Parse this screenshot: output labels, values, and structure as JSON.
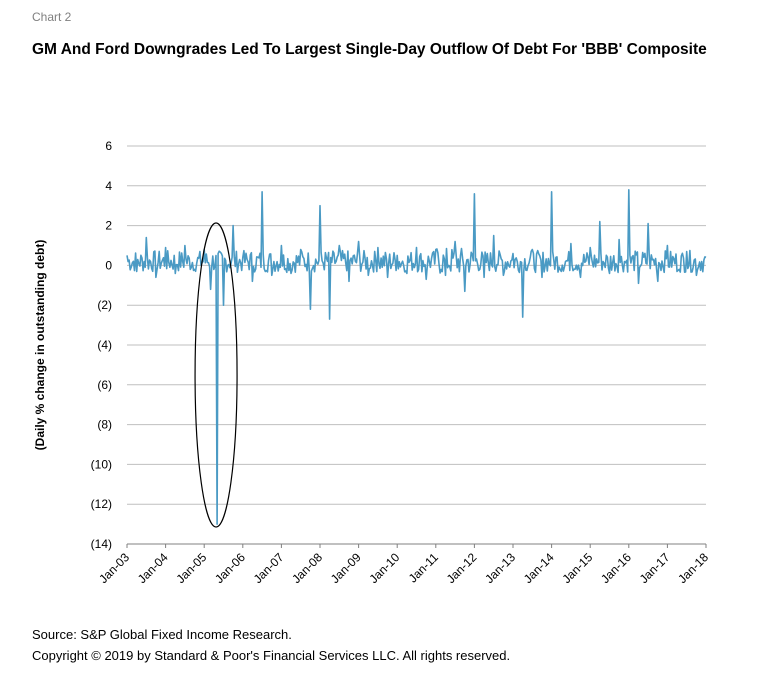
{
  "header": {
    "chart_label": "Chart 2",
    "title": "GM And Ford Downgrades Led To Largest Single-Day Outflow Of Debt For 'BBB' Composite"
  },
  "footer": {
    "source": "Source: S&P Global Fixed Income Research.",
    "copyright": "Copyright © 2019 by Standard & Poor's Financial Services LLC. All rights reserved."
  },
  "colors": {
    "series": "#4a9ac4",
    "grid": "#bfbfbf",
    "axis": "#808080",
    "annotation": "#000000"
  },
  "chart_data": {
    "type": "line",
    "title": "GM And Ford Downgrades Led To Largest Single-Day Outflow Of Debt For 'BBB' Composite",
    "xlabel": "",
    "ylabel": "(Daily % change in outstanding debt)",
    "ylim": [
      -14,
      6
    ],
    "y_ticks": [
      6,
      4,
      2,
      0,
      -2,
      -4,
      -6,
      -8,
      -10,
      -12,
      -14
    ],
    "y_tick_labels": [
      "6",
      "4",
      "2",
      "0",
      "(2)",
      "(4)",
      "(6)",
      "(8)",
      "(10)",
      "(12)",
      "(14)"
    ],
    "x_tick_labels": [
      "Jan-03",
      "Jan-04",
      "Jan-05",
      "Jan-06",
      "Jan-07",
      "Jan-08",
      "Jan-09",
      "Jan-10",
      "Jan-11",
      "Jan-12",
      "Jan-13",
      "Jan-14",
      "Jan-15",
      "Jan-16",
      "Jan-17",
      "Jan-18"
    ],
    "grid": "horizontal",
    "legend": "none",
    "annotation": "ellipse around May-2005 outflow",
    "series": [
      {
        "x": [
          "2003-01",
          "2003-04",
          "2003-07",
          "2003-10",
          "2004-01",
          "2004-04",
          "2004-07",
          "2004-10",
          "2005-01",
          "2005-03",
          "2005-05",
          "2005-07",
          "2005-10",
          "2006-01",
          "2006-04",
          "2006-07",
          "2006-10",
          "2007-01",
          "2007-04",
          "2007-07",
          "2007-10",
          "2008-01",
          "2008-04",
          "2008-07",
          "2008-10",
          "2009-01",
          "2009-04",
          "2009-07",
          "2009-10",
          "2010-01",
          "2010-04",
          "2010-07",
          "2010-10",
          "2011-01",
          "2011-04",
          "2011-07",
          "2011-10",
          "2012-01",
          "2012-04",
          "2012-07",
          "2012-10",
          "2013-01",
          "2013-04",
          "2013-07",
          "2013-10",
          "2014-01",
          "2014-04",
          "2014-07",
          "2014-10",
          "2015-01",
          "2015-04",
          "2015-07",
          "2015-10",
          "2016-01",
          "2016-04",
          "2016-07",
          "2016-10",
          "2017-01",
          "2017-04",
          "2017-07",
          "2017-10",
          "2018-01"
        ],
        "values": [
          0.5,
          -0.3,
          1.4,
          -0.6,
          0.9,
          -0.4,
          1.0,
          -0.2,
          0.8,
          -1.2,
          -13.0,
          -2.0,
          2.0,
          0.4,
          -0.8,
          3.7,
          -0.5,
          1.0,
          -0.4,
          0.8,
          -2.2,
          3.0,
          -2.7,
          1.0,
          -0.8,
          1.2,
          -0.5,
          0.9,
          -0.6,
          0.5,
          -0.4,
          0.9,
          -0.7,
          0.8,
          -0.5,
          1.2,
          -1.3,
          3.6,
          -0.6,
          1.5,
          -0.5,
          0.6,
          -2.6,
          0.8,
          -0.6,
          3.7,
          -0.3,
          1.1,
          -0.6,
          0.9,
          2.2,
          -0.4,
          1.3,
          3.8,
          -0.9,
          2.1,
          -0.8,
          1.0,
          -0.3,
          0.7,
          -0.5,
          0.4
        ]
      }
    ]
  }
}
